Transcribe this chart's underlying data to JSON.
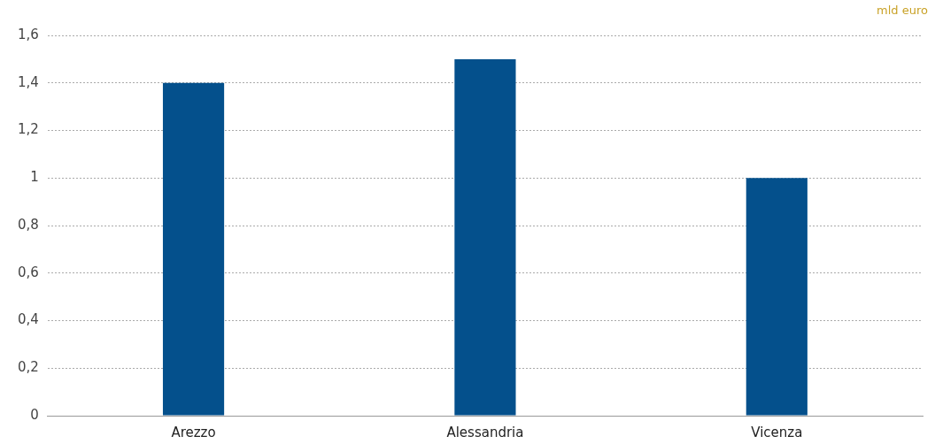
{
  "chart_data": {
    "type": "bar",
    "ylabel": "mld euro",
    "categories": [
      "Arezzo",
      "Alessandria",
      "Vicenza"
    ],
    "values": [
      1.4,
      1.5,
      1.0
    ],
    "color": "#04508c",
    "ylim": [
      0,
      1.6
    ],
    "yticks": [
      0,
      {
        "value": 0.2,
        "label": "0,2"
      },
      {
        "value": 0.4,
        "label": "0,4"
      },
      {
        "value": 0.6,
        "label": "0,6"
      },
      {
        "value": 0.8,
        "label": "0,8"
      },
      1,
      {
        "value": 1.2,
        "label": "1,2"
      },
      {
        "value": 1.4,
        "label": "1,4"
      },
      {
        "value": 1.6,
        "label": "1,6"
      }
    ],
    "grid": "y",
    "legend": false
  }
}
